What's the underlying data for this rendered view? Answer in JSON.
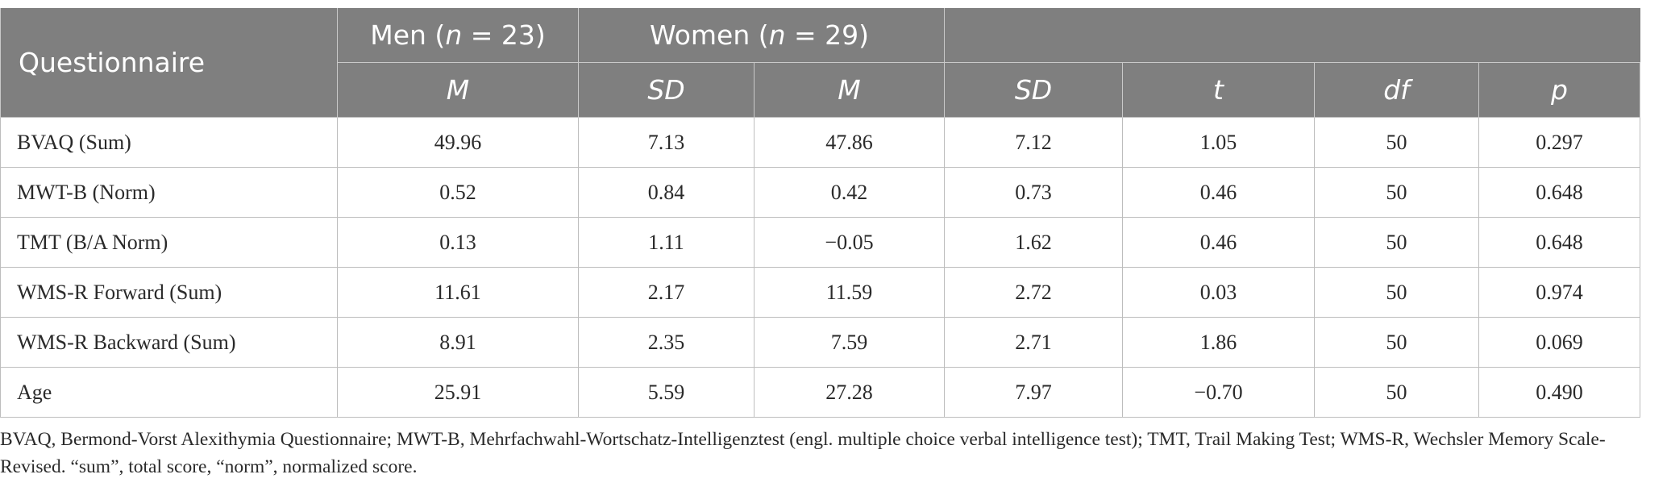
{
  "header": {
    "questionnaire": "Questionnaire",
    "men_prefix": "Men (",
    "n_symbol": "n",
    "men_suffix": " = 23)",
    "women_prefix": "Women (",
    "women_suffix": " = 29)",
    "subheaders": [
      "M",
      "SD",
      "M",
      "SD",
      "t",
      "df",
      "p"
    ]
  },
  "rows": [
    {
      "label": "BVAQ (Sum)",
      "values": [
        "49.96",
        "7.13",
        "47.86",
        "7.12",
        "1.05",
        "50",
        "0.297"
      ]
    },
    {
      "label": "MWT-B (Norm)",
      "values": [
        "0.52",
        "0.84",
        "0.42",
        "0.73",
        "0.46",
        "50",
        "0.648"
      ]
    },
    {
      "label": "TMT (B/A Norm)",
      "values": [
        "0.13",
        "1.11",
        "−0.05",
        "1.62",
        "0.46",
        "50",
        "0.648"
      ]
    },
    {
      "label": "WMS-R Forward (Sum)",
      "values": [
        "11.61",
        "2.17",
        "11.59",
        "2.72",
        "0.03",
        "50",
        "0.974"
      ]
    },
    {
      "label": "WMS-R Backward (Sum)",
      "values": [
        "8.91",
        "2.35",
        "7.59",
        "2.71",
        "1.86",
        "50",
        "0.069"
      ]
    },
    {
      "label": "Age",
      "values": [
        "25.91",
        "5.59",
        "27.28",
        "7.97",
        "−0.70",
        "50",
        "0.490"
      ]
    }
  ],
  "footnote": "BVAQ, Bermond-Vorst Alexithymia Questionnaire; MWT-B, Mehrfachwahl-Wortschatz-Intelligenztest (engl. multiple choice verbal intelligence test); TMT, Trail Making Test; WMS-R, Wechsler Memory Scale-Revised. “sum”, total score, “norm”, normalized score."
}
